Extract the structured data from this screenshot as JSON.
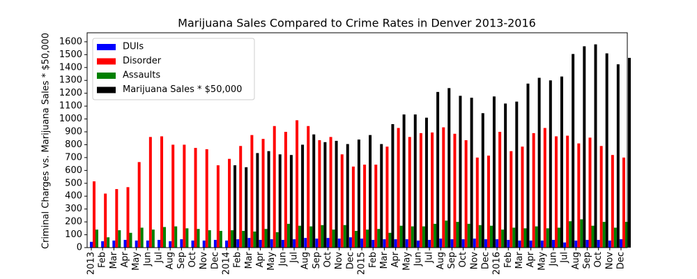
{
  "chart_data": {
    "type": "bar",
    "title": "Marijuana Sales Compared to Crime Rates in Denver 2013-2016",
    "y_label": "Criminal Charges vs. Marijuana Sales * $50,000",
    "categories": [
      "2013",
      "Feb",
      "Mar",
      "Apr",
      "May",
      "Jun",
      "Jul",
      "Aug",
      "Sep",
      "Oct",
      "Nov",
      "Dec",
      "2014",
      "Feb",
      "Mar",
      "Apr",
      "May",
      "Jun",
      "Jul",
      "Aug",
      "Sep",
      "Oct",
      "Nov",
      "Dec",
      "2015",
      "Feb",
      "Mar",
      "Apr",
      "May",
      "Jun",
      "Jul",
      "Aug",
      "Sep",
      "Oct",
      "Nov",
      "Dec",
      "2016",
      "Feb",
      "Mar",
      "Apr",
      "May",
      "Jun",
      "Jul",
      "Aug",
      "Sep",
      "Oct",
      "Nov",
      "Dec"
    ],
    "series": [
      {
        "name": "DUIs",
        "color": "#0000ff",
        "values": [
          45,
          50,
          55,
          60,
          55,
          55,
          60,
          50,
          65,
          55,
          55,
          60,
          55,
          65,
          75,
          60,
          65,
          60,
          65,
          75,
          70,
          75,
          70,
          80,
          70,
          60,
          65,
          65,
          65,
          55,
          60,
          70,
          65,
          65,
          70,
          65,
          65,
          60,
          55,
          55,
          55,
          60,
          40,
          55,
          60,
          60,
          55,
          65
        ]
      },
      {
        "name": "Disorder",
        "color": "#ff0000",
        "values": [
          515,
          420,
          455,
          470,
          665,
          860,
          865,
          800,
          800,
          775,
          765,
          640,
          690,
          790,
          875,
          845,
          945,
          900,
          990,
          945,
          835,
          860,
          725,
          630,
          645,
          645,
          785,
          930,
          860,
          890,
          895,
          935,
          885,
          835,
          700,
          715,
          900,
          750,
          785,
          890,
          930,
          865,
          870,
          810,
          855,
          790,
          720,
          700
        ]
      },
      {
        "name": "Assaults",
        "color": "#008000",
        "values": [
          140,
          80,
          135,
          115,
          155,
          140,
          160,
          165,
          150,
          145,
          135,
          130,
          135,
          130,
          125,
          145,
          120,
          185,
          170,
          165,
          175,
          140,
          175,
          130,
          140,
          145,
          115,
          170,
          165,
          165,
          185,
          210,
          200,
          185,
          175,
          170,
          140,
          155,
          150,
          165,
          150,
          155,
          205,
          220,
          170,
          200,
          155,
          200
        ]
      },
      {
        "name": "Marijuana Sales * $50,000",
        "color": "#000000",
        "values": [
          null,
          null,
          null,
          null,
          null,
          null,
          null,
          null,
          null,
          null,
          null,
          null,
          640,
          625,
          735,
          750,
          725,
          720,
          800,
          880,
          820,
          830,
          805,
          840,
          875,
          805,
          960,
          1035,
          1035,
          1010,
          1210,
          1240,
          1180,
          1165,
          1045,
          1175,
          1120,
          1135,
          1275,
          1320,
          1300,
          1330,
          1505,
          1565,
          1580,
          1510,
          1425,
          1475
        ]
      }
    ],
    "ylim": [
      0,
      1670
    ],
    "yticks": [
      0,
      100,
      200,
      300,
      400,
      500,
      600,
      700,
      800,
      900,
      1000,
      1100,
      1200,
      1300,
      1400,
      1500,
      1600
    ],
    "legend": "upper left"
  }
}
